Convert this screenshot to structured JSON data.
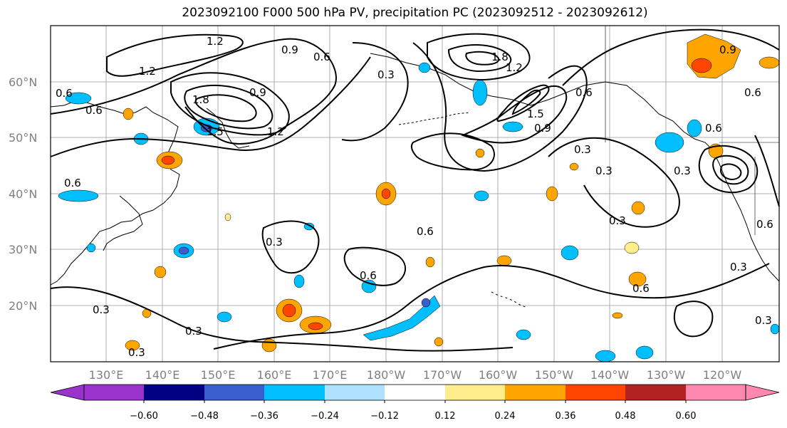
{
  "title": "2023092100 F000 500 hPa PV, precipitation PC (2023092512 - 2023092612)",
  "map": {
    "lat_labels": [
      "60°N",
      "50°N",
      "40°N",
      "30°N",
      "20°N"
    ],
    "lon_labels": [
      "130°E",
      "140°E",
      "150°E",
      "160°E",
      "170°E",
      "180°W",
      "170°W",
      "160°W",
      "150°W",
      "140°W",
      "130°W",
      "120°W"
    ],
    "pv_contour_labels": [
      "0.3",
      "0.6",
      "0.9",
      "1.2",
      "1.5",
      "1.8"
    ],
    "precip_colors": {
      "strong_negative": "#9933cc",
      "negative_1": "#000080",
      "negative_2": "#3a5fcd",
      "negative_3": "#00bfff",
      "negative_4": "#b0e2ff",
      "neutral": "#ffffff",
      "positive_1": "#ffec8b",
      "positive_2": "#ffa500",
      "positive_3": "#ff4500",
      "positive_4": "#b22222",
      "strong_positive": "#ff88b0"
    }
  },
  "colorbar": {
    "ticks": [
      "−0.60",
      "−0.48",
      "−0.36",
      "−0.24",
      "−0.12",
      "0.12",
      "0.24",
      "0.36",
      "0.48",
      "0.60"
    ],
    "colors": [
      "#9933cc",
      "#000080",
      "#3a5fcd",
      "#00bfff",
      "#b0e2ff",
      "#ffffff",
      "#ffec8b",
      "#ffa500",
      "#ff4500",
      "#b22222",
      "#ff88b0"
    ]
  }
}
